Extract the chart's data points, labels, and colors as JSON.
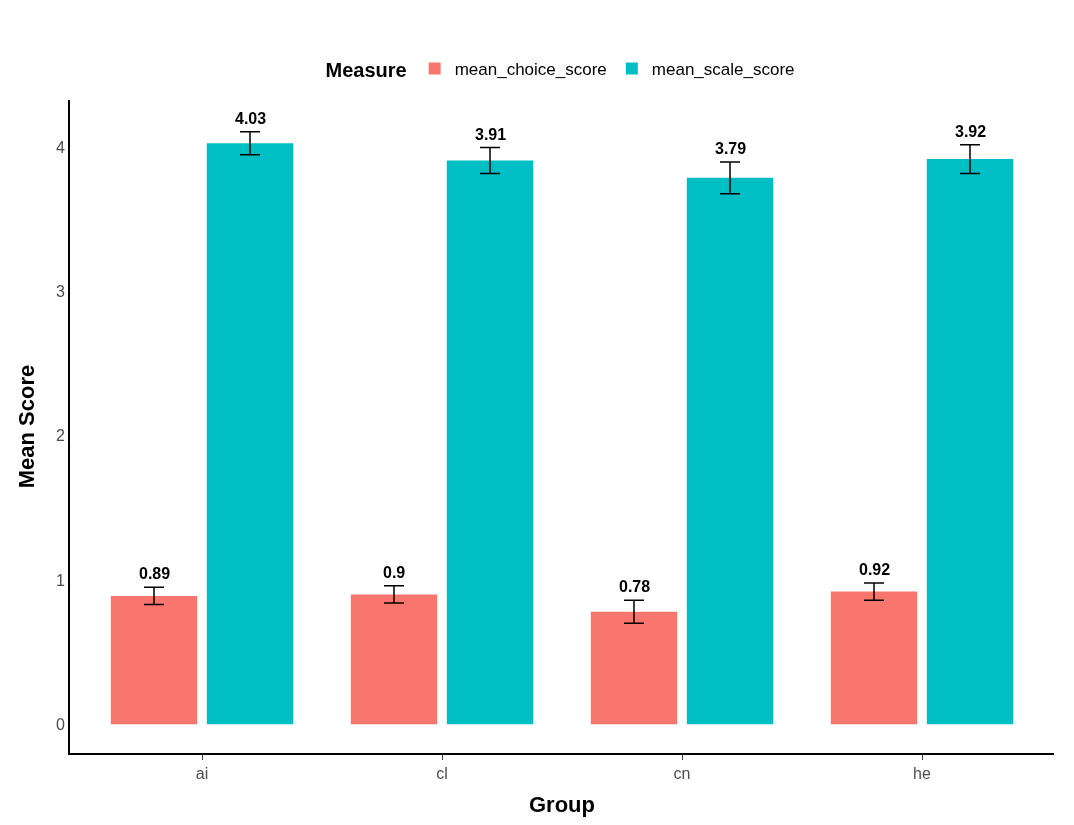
{
  "chart_data": {
    "type": "bar",
    "xlabel": "Group",
    "ylabel": "Mean Score",
    "legend_title": "Measure",
    "categories": [
      "ai",
      "cl",
      "cn",
      "he"
    ],
    "series": [
      {
        "name": "mean_choice_score",
        "color": "#f8766d",
        "values": [
          0.89,
          0.9,
          0.78,
          0.92
        ],
        "errors": [
          0.06,
          0.06,
          0.08,
          0.06
        ]
      },
      {
        "name": "mean_scale_score",
        "color": "#00bfc4",
        "values": [
          4.03,
          3.91,
          3.79,
          3.92
        ],
        "errors": [
          0.08,
          0.09,
          0.11,
          0.1
        ]
      }
    ],
    "ylim": [
      -0.2,
      4.33
    ],
    "yticks": [
      0,
      1,
      2,
      3,
      4
    ],
    "legend": "top",
    "data_labels": true
  }
}
